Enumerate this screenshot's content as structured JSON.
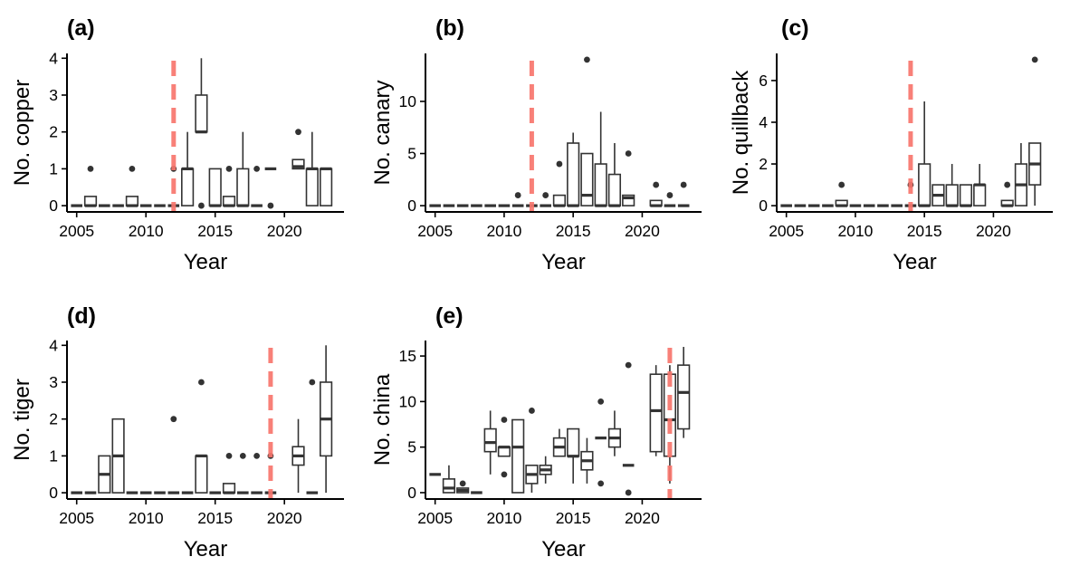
{
  "chart_data": [
    {
      "type": "box",
      "panel_label": "(a)",
      "xlabel": "Year",
      "ylabel": "No. copper",
      "xlim": [
        2004.3,
        2024.3
      ],
      "ylim": [
        -0.17,
        4.13
      ],
      "xticks": [
        2005,
        2010,
        2015,
        2020
      ],
      "yticks": [
        0,
        1,
        2,
        3,
        4
      ],
      "reference_line_x": 2012,
      "reference_line_color": "#F8766D",
      "boxes": [
        {
          "x": 2005,
          "lower": 0,
          "q1": 0,
          "median": 0,
          "q3": 0,
          "upper": 0,
          "outliers": []
        },
        {
          "x": 2006,
          "lower": 0,
          "q1": 0,
          "median": 0,
          "q3": 0.25,
          "upper": 0.25,
          "outliers": [
            1
          ]
        },
        {
          "x": 2007,
          "lower": 0,
          "q1": 0,
          "median": 0,
          "q3": 0,
          "upper": 0,
          "outliers": []
        },
        {
          "x": 2008,
          "lower": 0,
          "q1": 0,
          "median": 0,
          "q3": 0,
          "upper": 0,
          "outliers": []
        },
        {
          "x": 2009,
          "lower": 0,
          "q1": 0,
          "median": 0,
          "q3": 0.25,
          "upper": 0.25,
          "outliers": [
            1
          ]
        },
        {
          "x": 2010,
          "lower": 0,
          "q1": 0,
          "median": 0,
          "q3": 0,
          "upper": 0,
          "outliers": []
        },
        {
          "x": 2011,
          "lower": 0,
          "q1": 0,
          "median": 0,
          "q3": 0,
          "upper": 0,
          "outliers": []
        },
        {
          "x": 2012,
          "lower": 0,
          "q1": 0,
          "median": 0,
          "q3": 0,
          "upper": 0,
          "outliers": [
            1
          ]
        },
        {
          "x": 2013,
          "lower": 0,
          "q1": 0,
          "median": 1,
          "q3": 1,
          "upper": 2,
          "outliers": []
        },
        {
          "x": 2014,
          "lower": 2,
          "q1": 2,
          "median": 2,
          "q3": 3,
          "upper": 4,
          "outliers": [
            0
          ]
        },
        {
          "x": 2015,
          "lower": 0,
          "q1": 0,
          "median": 0,
          "q3": 1,
          "upper": 1,
          "outliers": []
        },
        {
          "x": 2016,
          "lower": 0,
          "q1": 0,
          "median": 0,
          "q3": 0.25,
          "upper": 0.25,
          "outliers": [
            1
          ]
        },
        {
          "x": 2017,
          "lower": 0,
          "q1": 0,
          "median": 0,
          "q3": 1,
          "upper": 2,
          "outliers": []
        },
        {
          "x": 2018,
          "lower": 0,
          "q1": 0,
          "median": 0,
          "q3": 0,
          "upper": 0,
          "outliers": [
            1
          ]
        },
        {
          "x": 2019,
          "lower": 1,
          "q1": 1,
          "median": 1,
          "q3": 1,
          "upper": 1,
          "outliers": [
            0
          ]
        },
        {
          "x": 2021,
          "lower": 1,
          "q1": 1,
          "median": 1.06,
          "q3": 1.25,
          "upper": 1.25,
          "outliers": [
            2
          ]
        },
        {
          "x": 2022,
          "lower": 0,
          "q1": 0,
          "median": 1,
          "q3": 1,
          "upper": 2,
          "outliers": []
        },
        {
          "x": 2023,
          "lower": 0,
          "q1": 0,
          "median": 1,
          "q3": 1,
          "upper": 1,
          "outliers": []
        }
      ]
    },
    {
      "type": "box",
      "panel_label": "(b)",
      "xlabel": "Year",
      "ylabel": "No. canary",
      "xlim": [
        2004.3,
        2024.3
      ],
      "ylim": [
        -0.6,
        14.6
      ],
      "xticks": [
        2005,
        2010,
        2015,
        2020
      ],
      "yticks": [
        0,
        5,
        10
      ],
      "reference_line_x": 2012,
      "reference_line_color": "#F8766D",
      "boxes": [
        {
          "x": 2005,
          "lower": 0,
          "q1": 0,
          "median": 0,
          "q3": 0,
          "upper": 0,
          "outliers": []
        },
        {
          "x": 2006,
          "lower": 0,
          "q1": 0,
          "median": 0,
          "q3": 0,
          "upper": 0,
          "outliers": []
        },
        {
          "x": 2007,
          "lower": 0,
          "q1": 0,
          "median": 0,
          "q3": 0,
          "upper": 0,
          "outliers": []
        },
        {
          "x": 2008,
          "lower": 0,
          "q1": 0,
          "median": 0,
          "q3": 0,
          "upper": 0,
          "outliers": []
        },
        {
          "x": 2009,
          "lower": 0,
          "q1": 0,
          "median": 0,
          "q3": 0,
          "upper": 0,
          "outliers": []
        },
        {
          "x": 2010,
          "lower": 0,
          "q1": 0,
          "median": 0,
          "q3": 0,
          "upper": 0,
          "outliers": []
        },
        {
          "x": 2011,
          "lower": 0,
          "q1": 0,
          "median": 0,
          "q3": 0,
          "upper": 0,
          "outliers": [
            1
          ]
        },
        {
          "x": 2012,
          "lower": 0,
          "q1": 0,
          "median": 0,
          "q3": 0,
          "upper": 0,
          "outliers": []
        },
        {
          "x": 2013,
          "lower": 0,
          "q1": 0,
          "median": 0,
          "q3": 0,
          "upper": 0,
          "outliers": [
            1
          ]
        },
        {
          "x": 2014,
          "lower": 0,
          "q1": 0,
          "median": 0,
          "q3": 1,
          "upper": 1,
          "outliers": [
            4
          ]
        },
        {
          "x": 2015,
          "lower": 0,
          "q1": 0,
          "median": 0,
          "q3": 6,
          "upper": 7,
          "outliers": []
        },
        {
          "x": 2016,
          "lower": 0,
          "q1": 0,
          "median": 1,
          "q3": 5,
          "upper": 5,
          "outliers": [
            14
          ]
        },
        {
          "x": 2017,
          "lower": 0,
          "q1": 0,
          "median": 0,
          "q3": 4,
          "upper": 9,
          "outliers": []
        },
        {
          "x": 2018,
          "lower": 0,
          "q1": 0,
          "median": 0,
          "q3": 3,
          "upper": 6,
          "outliers": []
        },
        {
          "x": 2019,
          "lower": 0,
          "q1": 0,
          "median": 0.75,
          "q3": 1,
          "upper": 1,
          "outliers": [
            5
          ]
        },
        {
          "x": 2021,
          "lower": 0,
          "q1": 0,
          "median": 0,
          "q3": 0.5,
          "upper": 0.5,
          "outliers": [
            2
          ]
        },
        {
          "x": 2022,
          "lower": 0,
          "q1": 0,
          "median": 0,
          "q3": 0,
          "upper": 0,
          "outliers": [
            1
          ]
        },
        {
          "x": 2023,
          "lower": 0,
          "q1": 0,
          "median": 0,
          "q3": 0,
          "upper": 0,
          "outliers": [
            2
          ]
        }
      ]
    },
    {
      "type": "box",
      "panel_label": "(c)",
      "xlabel": "Year",
      "ylabel": "No. quillback",
      "xlim": [
        2004.3,
        2024.3
      ],
      "ylim": [
        -0.3,
        7.3
      ],
      "xticks": [
        2005,
        2010,
        2015,
        2020
      ],
      "yticks": [
        0,
        2,
        4,
        6
      ],
      "reference_line_x": 2014,
      "reference_line_color": "#F8766D",
      "boxes": [
        {
          "x": 2005,
          "lower": 0,
          "q1": 0,
          "median": 0,
          "q3": 0,
          "upper": 0,
          "outliers": []
        },
        {
          "x": 2006,
          "lower": 0,
          "q1": 0,
          "median": 0,
          "q3": 0,
          "upper": 0,
          "outliers": []
        },
        {
          "x": 2007,
          "lower": 0,
          "q1": 0,
          "median": 0,
          "q3": 0,
          "upper": 0,
          "outliers": []
        },
        {
          "x": 2008,
          "lower": 0,
          "q1": 0,
          "median": 0,
          "q3": 0,
          "upper": 0,
          "outliers": []
        },
        {
          "x": 2009,
          "lower": 0,
          "q1": 0,
          "median": 0,
          "q3": 0.25,
          "upper": 0.25,
          "outliers": [
            1
          ]
        },
        {
          "x": 2010,
          "lower": 0,
          "q1": 0,
          "median": 0,
          "q3": 0,
          "upper": 0,
          "outliers": []
        },
        {
          "x": 2011,
          "lower": 0,
          "q1": 0,
          "median": 0,
          "q3": 0,
          "upper": 0,
          "outliers": []
        },
        {
          "x": 2012,
          "lower": 0,
          "q1": 0,
          "median": 0,
          "q3": 0,
          "upper": 0,
          "outliers": []
        },
        {
          "x": 2013,
          "lower": 0,
          "q1": 0,
          "median": 0,
          "q3": 0,
          "upper": 0,
          "outliers": []
        },
        {
          "x": 2014,
          "lower": 0,
          "q1": 0,
          "median": 0,
          "q3": 0,
          "upper": 0,
          "outliers": [
            1
          ]
        },
        {
          "x": 2015,
          "lower": 0,
          "q1": 0,
          "median": 0,
          "q3": 2,
          "upper": 5,
          "outliers": []
        },
        {
          "x": 2016,
          "lower": 0,
          "q1": 0,
          "median": 0.5,
          "q3": 1,
          "upper": 1,
          "outliers": []
        },
        {
          "x": 2017,
          "lower": 0,
          "q1": 0,
          "median": 0,
          "q3": 1,
          "upper": 2,
          "outliers": []
        },
        {
          "x": 2018,
          "lower": 0,
          "q1": 0,
          "median": 0,
          "q3": 1,
          "upper": 1,
          "outliers": []
        },
        {
          "x": 2019,
          "lower": 0,
          "q1": 0,
          "median": 1,
          "q3": 1,
          "upper": 2,
          "outliers": []
        },
        {
          "x": 2021,
          "lower": 0,
          "q1": 0,
          "median": 0,
          "q3": 0.25,
          "upper": 0.25,
          "outliers": [
            1
          ]
        },
        {
          "x": 2022,
          "lower": 0,
          "q1": 0,
          "median": 1,
          "q3": 2,
          "upper": 3,
          "outliers": []
        },
        {
          "x": 2023,
          "lower": 0,
          "q1": 1,
          "median": 2,
          "q3": 3,
          "upper": 3,
          "outliers": [
            7
          ]
        }
      ]
    },
    {
      "type": "box",
      "panel_label": "(d)",
      "xlabel": "Year",
      "ylabel": "No. tiger",
      "xlim": [
        2004.3,
        2024.3
      ],
      "ylim": [
        -0.17,
        4.13
      ],
      "xticks": [
        2005,
        2010,
        2015,
        2020
      ],
      "yticks": [
        0,
        1,
        2,
        3,
        4
      ],
      "reference_line_x": 2019,
      "reference_line_color": "#F8766D",
      "boxes": [
        {
          "x": 2005,
          "lower": 0,
          "q1": 0,
          "median": 0,
          "q3": 0,
          "upper": 0,
          "outliers": []
        },
        {
          "x": 2006,
          "lower": 0,
          "q1": 0,
          "median": 0,
          "q3": 0,
          "upper": 0,
          "outliers": []
        },
        {
          "x": 2007,
          "lower": 0,
          "q1": 0,
          "median": 0.5,
          "q3": 1,
          "upper": 1,
          "outliers": []
        },
        {
          "x": 2008,
          "lower": 0,
          "q1": 0,
          "median": 1,
          "q3": 2,
          "upper": 2,
          "outliers": []
        },
        {
          "x": 2009,
          "lower": 0,
          "q1": 0,
          "median": 0,
          "q3": 0,
          "upper": 0,
          "outliers": []
        },
        {
          "x": 2010,
          "lower": 0,
          "q1": 0,
          "median": 0,
          "q3": 0,
          "upper": 0,
          "outliers": []
        },
        {
          "x": 2011,
          "lower": 0,
          "q1": 0,
          "median": 0,
          "q3": 0,
          "upper": 0,
          "outliers": []
        },
        {
          "x": 2012,
          "lower": 0,
          "q1": 0,
          "median": 0,
          "q3": 0,
          "upper": 0,
          "outliers": [
            2
          ]
        },
        {
          "x": 2013,
          "lower": 0,
          "q1": 0,
          "median": 0,
          "q3": 0,
          "upper": 0,
          "outliers": []
        },
        {
          "x": 2014,
          "lower": 0,
          "q1": 0,
          "median": 1,
          "q3": 1,
          "upper": 1,
          "outliers": [
            3
          ]
        },
        {
          "x": 2015,
          "lower": 0,
          "q1": 0,
          "median": 0,
          "q3": 0,
          "upper": 0,
          "outliers": []
        },
        {
          "x": 2016,
          "lower": 0,
          "q1": 0,
          "median": 0,
          "q3": 0.25,
          "upper": 0.25,
          "outliers": [
            1
          ]
        },
        {
          "x": 2017,
          "lower": 0,
          "q1": 0,
          "median": 0,
          "q3": 0,
          "upper": 0,
          "outliers": [
            1
          ]
        },
        {
          "x": 2018,
          "lower": 0,
          "q1": 0,
          "median": 0,
          "q3": 0,
          "upper": 0,
          "outliers": [
            1
          ]
        },
        {
          "x": 2019,
          "lower": 0,
          "q1": 0,
          "median": 0,
          "q3": 0,
          "upper": 0,
          "outliers": [
            1
          ]
        },
        {
          "x": 2021,
          "lower": 0,
          "q1": 0.75,
          "median": 1,
          "q3": 1.25,
          "upper": 2,
          "outliers": []
        },
        {
          "x": 2022,
          "lower": 0,
          "q1": 0,
          "median": 0,
          "q3": 0,
          "upper": 0,
          "outliers": [
            3
          ]
        },
        {
          "x": 2023,
          "lower": 0,
          "q1": 1,
          "median": 2,
          "q3": 3,
          "upper": 4,
          "outliers": []
        }
      ]
    },
    {
      "type": "box",
      "panel_label": "(e)",
      "xlabel": "Year",
      "ylabel": "No. china",
      "xlim": [
        2004.3,
        2024.3
      ],
      "ylim": [
        -0.7,
        16.7
      ],
      "xticks": [
        2005,
        2010,
        2015,
        2020
      ],
      "yticks": [
        0,
        5,
        10,
        15
      ],
      "reference_line_x": 2022,
      "reference_line_color": "#F8766D",
      "boxes": [
        {
          "x": 2005,
          "lower": 2,
          "q1": 2,
          "median": 2,
          "q3": 2,
          "upper": 2,
          "outliers": []
        },
        {
          "x": 2006,
          "lower": 0,
          "q1": 0,
          "median": 0.5,
          "q3": 1.5,
          "upper": 3,
          "outliers": []
        },
        {
          "x": 2007,
          "lower": 0,
          "q1": 0,
          "median": 0.25,
          "q3": 0.5,
          "upper": 0.5,
          "outliers": [
            1
          ]
        },
        {
          "x": 2008,
          "lower": 0,
          "q1": 0,
          "median": 0,
          "q3": 0,
          "upper": 0,
          "outliers": []
        },
        {
          "x": 2009,
          "lower": 2,
          "q1": 4.5,
          "median": 5.5,
          "q3": 7,
          "upper": 9,
          "outliers": []
        },
        {
          "x": 2010,
          "lower": 4,
          "q1": 4,
          "median": 5,
          "q3": 5,
          "upper": 5,
          "outliers": [
            2,
            8
          ]
        },
        {
          "x": 2011,
          "lower": 0,
          "q1": 0,
          "median": 5,
          "q3": 8,
          "upper": 8,
          "outliers": []
        },
        {
          "x": 2012,
          "lower": 0,
          "q1": 1,
          "median": 2,
          "q3": 3,
          "upper": 3,
          "outliers": [
            9
          ]
        },
        {
          "x": 2013,
          "lower": 1,
          "q1": 2,
          "median": 2.5,
          "q3": 3,
          "upper": 4,
          "outliers": []
        },
        {
          "x": 2014,
          "lower": 4,
          "q1": 4,
          "median": 5,
          "q3": 6,
          "upper": 7,
          "outliers": []
        },
        {
          "x": 2015,
          "lower": 1,
          "q1": 4,
          "median": 4,
          "q3": 7,
          "upper": 7,
          "outliers": []
        },
        {
          "x": 2016,
          "lower": 1,
          "q1": 2.5,
          "median": 3.5,
          "q3": 4.5,
          "upper": 6,
          "outliers": []
        },
        {
          "x": 2017,
          "lower": 6,
          "q1": 6,
          "median": 6,
          "q3": 6,
          "upper": 6,
          "outliers": [
            1,
            10
          ]
        },
        {
          "x": 2018,
          "lower": 4,
          "q1": 5,
          "median": 6,
          "q3": 7,
          "upper": 9,
          "outliers": []
        },
        {
          "x": 2019,
          "lower": 3,
          "q1": 3,
          "median": 3,
          "q3": 3,
          "upper": 3,
          "outliers": [
            0,
            14
          ]
        },
        {
          "x": 2021,
          "lower": 4,
          "q1": 4.5,
          "median": 9,
          "q3": 13,
          "upper": 14,
          "outliers": []
        },
        {
          "x": 2022,
          "lower": 1,
          "q1": 4,
          "median": 8,
          "q3": 13,
          "upper": 14,
          "outliers": []
        },
        {
          "x": 2023,
          "lower": 6,
          "q1": 7,
          "median": 11,
          "q3": 14,
          "upper": 16,
          "outliers": []
        }
      ]
    }
  ]
}
